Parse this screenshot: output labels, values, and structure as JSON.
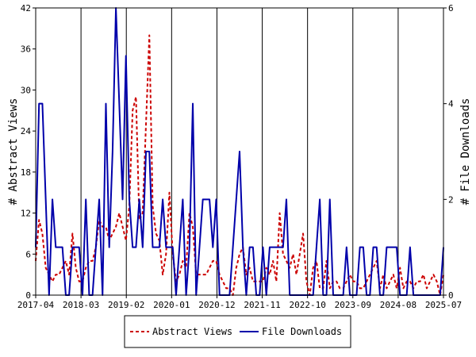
{
  "chart_data": {
    "type": "line",
    "title": "",
    "ylabel_left": "# Abstract Views",
    "ylabel_right": "# File Downloads",
    "x_tick_labels": [
      "2017-04",
      "2018-03",
      "2019-02",
      "2020-01",
      "2020-12",
      "2021-11",
      "2022-10",
      "2023-09",
      "2024-08",
      "2025-07"
    ],
    "y_left_ticks": [
      "0",
      "6",
      "12",
      "18",
      "24",
      "30",
      "36",
      "42"
    ],
    "y_right_ticks": [
      "0",
      "2",
      "4",
      "6"
    ],
    "ylim_left": [
      0,
      42
    ],
    "ylim_right": [
      0,
      6
    ],
    "x_start": "2017-04",
    "x_end": "2025-07",
    "grid": "vertical",
    "legend_position": "bottom-center",
    "series": [
      {
        "name": "Abstract Views",
        "axis": "left",
        "color": "#cc0000",
        "style": "dashed",
        "values": [
          5,
          11,
          9,
          4,
          3,
          2,
          3,
          3,
          4,
          5,
          3,
          9,
          4,
          2,
          2,
          4,
          5,
          5,
          7,
          11,
          10,
          10,
          8,
          9,
          10,
          12,
          10,
          8,
          13,
          27,
          29,
          11,
          12,
          25,
          38,
          13,
          9,
          8,
          3,
          6,
          15,
          6,
          2,
          3,
          5,
          4,
          12,
          10,
          3,
          3,
          3,
          3,
          4,
          5,
          5,
          3,
          2,
          1,
          1,
          0,
          4,
          6,
          7,
          3,
          4,
          2,
          2,
          2,
          2,
          4,
          3,
          5,
          2,
          12,
          6,
          5,
          4,
          6,
          3,
          6,
          9,
          2,
          0,
          4,
          5,
          1,
          1,
          5,
          1,
          2,
          2,
          1,
          1,
          2,
          3,
          2,
          2,
          1,
          1,
          2,
          3,
          4,
          5,
          1,
          3,
          1,
          2,
          3,
          1,
          4,
          1,
          2,
          2,
          1,
          2,
          2,
          3,
          1,
          2,
          3,
          2,
          0,
          3
        ]
      },
      {
        "name": "File Downloads",
        "axis": "right",
        "color": "#0000aa",
        "style": "solid",
        "values": [
          1,
          4,
          4,
          2,
          0,
          2,
          1,
          1,
          1,
          0,
          0,
          1,
          1,
          1,
          0,
          2,
          0,
          0,
          1,
          2,
          0,
          4,
          1,
          3,
          6,
          4,
          2,
          5,
          2,
          1,
          1,
          2,
          1,
          3,
          3,
          1,
          1,
          1,
          2,
          1,
          1,
          1,
          0,
          1,
          2,
          0,
          1,
          4,
          0,
          1,
          2,
          2,
          2,
          1,
          2,
          0,
          0,
          0,
          0,
          1,
          2,
          3,
          1,
          0,
          1,
          1,
          0,
          0,
          1,
          0,
          1,
          1,
          1,
          1,
          1,
          2,
          0,
          0,
          0,
          0,
          0,
          0,
          0,
          0,
          1,
          2,
          0,
          0,
          2,
          0,
          0,
          0,
          0,
          1,
          0,
          0,
          0,
          1,
          1,
          0,
          0,
          1,
          1,
          0,
          0,
          1,
          1,
          1,
          1,
          0,
          0,
          0,
          1,
          0,
          0,
          0,
          0,
          0,
          0,
          0,
          0,
          0,
          1
        ]
      }
    ]
  }
}
